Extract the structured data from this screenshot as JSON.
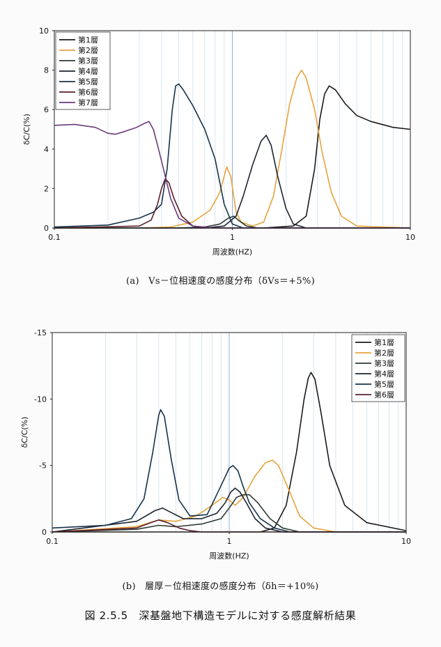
{
  "figure_title": "図 2.5.5　深基盤地下構造モデルに対する感度解析結果",
  "chart_data": [
    {
      "type": "line",
      "caption": "(a)　Vs－位相速度の感度分布（δVs＝+5%)",
      "xlabel": "周波数(HZ)",
      "ylabel": "δC/C(%)",
      "x_scale": "log",
      "xlim": [
        0.1,
        10
      ],
      "ylim": [
        0,
        10
      ],
      "y_inverted": false,
      "x_ticks": [
        "0.1",
        "1",
        "10"
      ],
      "y_ticks": [
        "0",
        "2",
        "4",
        "6",
        "8",
        "10"
      ],
      "grid": true,
      "legend_position": "top-left",
      "series": [
        {
          "name": "第1層",
          "color": "#1a1a1a",
          "points": [
            [
              0.1,
              0
            ],
            [
              1.5,
              0
            ],
            [
              2.2,
              0.1
            ],
            [
              2.6,
              0.6
            ],
            [
              2.9,
              3.0
            ],
            [
              3.1,
              5.5
            ],
            [
              3.3,
              6.8
            ],
            [
              3.5,
              7.2
            ],
            [
              3.8,
              7.0
            ],
            [
              4.3,
              6.3
            ],
            [
              5,
              5.7
            ],
            [
              6,
              5.4
            ],
            [
              8,
              5.1
            ],
            [
              10,
              5.0
            ]
          ]
        },
        {
          "name": "第2層",
          "color": "#e8a33c",
          "points": [
            [
              0.1,
              0
            ],
            [
              0.3,
              0
            ],
            [
              0.45,
              0.05
            ],
            [
              0.6,
              0.3
            ],
            [
              0.75,
              0.9
            ],
            [
              0.85,
              1.8
            ],
            [
              0.93,
              3.1
            ],
            [
              0.98,
              2.6
            ],
            [
              1.05,
              0.8
            ],
            [
              1.12,
              0.3
            ],
            [
              1.3,
              0.1
            ],
            [
              1.5,
              0.3
            ],
            [
              1.7,
              1.6
            ],
            [
              1.9,
              4.0
            ],
            [
              2.1,
              6.3
            ],
            [
              2.3,
              7.6
            ],
            [
              2.45,
              8.0
            ],
            [
              2.6,
              7.6
            ],
            [
              2.9,
              6.0
            ],
            [
              3.2,
              3.8
            ],
            [
              3.6,
              1.8
            ],
            [
              4.1,
              0.6
            ],
            [
              5,
              0.1
            ],
            [
              10,
              0
            ]
          ]
        },
        {
          "name": "第3層",
          "color": "#2b3a33",
          "points": [
            [
              0.1,
              0
            ],
            [
              0.5,
              0
            ],
            [
              0.7,
              0.05
            ],
            [
              0.85,
              0.2
            ],
            [
              0.95,
              0.5
            ],
            [
              1.02,
              0.6
            ],
            [
              1.08,
              0.4
            ],
            [
              1.2,
              0.1
            ],
            [
              1.4,
              0
            ],
            [
              10,
              0
            ]
          ]
        },
        {
          "name": "第4層",
          "color": "#1c2330",
          "points": [
            [
              0.1,
              0
            ],
            [
              0.7,
              0
            ],
            [
              0.9,
              0.1
            ],
            [
              1.05,
              0.6
            ],
            [
              1.15,
              1.6
            ],
            [
              1.3,
              3.2
            ],
            [
              1.45,
              4.4
            ],
            [
              1.55,
              4.7
            ],
            [
              1.65,
              4.2
            ],
            [
              1.8,
              2.6
            ],
            [
              2.0,
              1.0
            ],
            [
              2.2,
              0.2
            ],
            [
              2.6,
              0
            ],
            [
              10,
              0
            ]
          ]
        },
        {
          "name": "第5層",
          "color": "#16324a",
          "points": [
            [
              0.1,
              0.05
            ],
            [
              0.2,
              0.15
            ],
            [
              0.3,
              0.5
            ],
            [
              0.36,
              0.8
            ],
            [
              0.4,
              1.2
            ],
            [
              0.43,
              3.0
            ],
            [
              0.46,
              6.0
            ],
            [
              0.48,
              7.2
            ],
            [
              0.5,
              7.3
            ],
            [
              0.53,
              7.0
            ],
            [
              0.6,
              6.2
            ],
            [
              0.7,
              5.0
            ],
            [
              0.8,
              3.5
            ],
            [
              0.9,
              1.2
            ],
            [
              1.0,
              0.2
            ],
            [
              1.15,
              0
            ],
            [
              10,
              0
            ]
          ]
        },
        {
          "name": "第6層",
          "color": "#5a1f2a",
          "points": [
            [
              0.1,
              0
            ],
            [
              0.3,
              0.1
            ],
            [
              0.35,
              0.4
            ],
            [
              0.38,
              1.2
            ],
            [
              0.4,
              2.0
            ],
            [
              0.42,
              2.5
            ],
            [
              0.44,
              2.3
            ],
            [
              0.47,
              1.5
            ],
            [
              0.52,
              0.6
            ],
            [
              0.6,
              0.1
            ],
            [
              0.7,
              0
            ],
            [
              10,
              0
            ]
          ]
        },
        {
          "name": "第7層",
          "color": "#6a3a78",
          "points": [
            [
              0.1,
              5.2
            ],
            [
              0.13,
              5.25
            ],
            [
              0.17,
              5.1
            ],
            [
              0.2,
              4.8
            ],
            [
              0.22,
              4.75
            ],
            [
              0.25,
              4.9
            ],
            [
              0.29,
              5.1
            ],
            [
              0.32,
              5.3
            ],
            [
              0.34,
              5.4
            ],
            [
              0.36,
              5.0
            ],
            [
              0.38,
              4.2
            ],
            [
              0.41,
              3.0
            ],
            [
              0.45,
              1.5
            ],
            [
              0.5,
              0.5
            ],
            [
              0.6,
              0.1
            ],
            [
              0.8,
              0
            ],
            [
              10,
              0
            ]
          ]
        }
      ]
    },
    {
      "type": "line",
      "caption": "(b)　層厚－位相速度の感度分布（δh＝+10%)",
      "xlabel": "周波数(HZ)",
      "ylabel": "δC/C(%)",
      "x_scale": "log",
      "xlim": [
        0.1,
        10
      ],
      "ylim": [
        0,
        -15
      ],
      "y_inverted": true,
      "x_ticks": [
        "0.1",
        "1",
        "10"
      ],
      "y_ticks": [
        "0",
        "-5",
        "-10",
        "-15"
      ],
      "grid": true,
      "legend_position": "top-right",
      "series": [
        {
          "name": "第1層",
          "color": "#1a1a1a",
          "points": [
            [
              0.1,
              0
            ],
            [
              1.5,
              0
            ],
            [
              1.8,
              -0.3
            ],
            [
              2.1,
              -2.0
            ],
            [
              2.4,
              -6.0
            ],
            [
              2.65,
              -10.0
            ],
            [
              2.8,
              -11.6
            ],
            [
              2.9,
              -12.0
            ],
            [
              3.05,
              -11.5
            ],
            [
              3.3,
              -9.0
            ],
            [
              3.7,
              -5.0
            ],
            [
              4.5,
              -2.0
            ],
            [
              6,
              -0.7
            ],
            [
              10,
              -0.1
            ]
          ]
        },
        {
          "name": "第2層",
          "color": "#e8a33c",
          "points": [
            [
              0.1,
              0
            ],
            [
              0.3,
              -0.4
            ],
            [
              0.4,
              -0.9
            ],
            [
              0.5,
              -0.8
            ],
            [
              0.65,
              -1.2
            ],
            [
              0.8,
              -2.0
            ],
            [
              0.92,
              -2.6
            ],
            [
              1.0,
              -2.4
            ],
            [
              1.08,
              -2.0
            ],
            [
              1.2,
              -2.6
            ],
            [
              1.4,
              -4.2
            ],
            [
              1.6,
              -5.2
            ],
            [
              1.75,
              -5.4
            ],
            [
              1.9,
              -5.0
            ],
            [
              2.2,
              -3.0
            ],
            [
              2.5,
              -1.2
            ],
            [
              3.0,
              -0.3
            ],
            [
              4,
              0
            ],
            [
              10,
              0
            ]
          ]
        },
        {
          "name": "第3層",
          "color": "#2b3a33",
          "points": [
            [
              0.1,
              0
            ],
            [
              0.3,
              -0.2
            ],
            [
              0.4,
              -0.5
            ],
            [
              0.5,
              -0.4
            ],
            [
              0.7,
              -0.6
            ],
            [
              0.9,
              -1.0
            ],
            [
              1.0,
              -1.8
            ],
            [
              1.1,
              -2.6
            ],
            [
              1.2,
              -2.8
            ],
            [
              1.3,
              -2.8
            ],
            [
              1.45,
              -2.2
            ],
            [
              1.7,
              -1.0
            ],
            [
              2.0,
              -0.3
            ],
            [
              2.5,
              0
            ],
            [
              10,
              0
            ]
          ]
        },
        {
          "name": "第4層",
          "color": "#1c2330",
          "points": [
            [
              0.1,
              0
            ],
            [
              0.3,
              -0.8
            ],
            [
              0.38,
              -1.6
            ],
            [
              0.42,
              -1.8
            ],
            [
              0.48,
              -1.4
            ],
            [
              0.55,
              -1.0
            ],
            [
              0.7,
              -1.0
            ],
            [
              0.85,
              -1.4
            ],
            [
              0.95,
              -2.2
            ],
            [
              1.02,
              -3.0
            ],
            [
              1.08,
              -3.3
            ],
            [
              1.15,
              -3.0
            ],
            [
              1.25,
              -2.2
            ],
            [
              1.4,
              -1.0
            ],
            [
              1.6,
              -0.3
            ],
            [
              2.0,
              0
            ],
            [
              10,
              0
            ]
          ]
        },
        {
          "name": "第5層",
          "color": "#16324a",
          "points": [
            [
              0.1,
              -0.3
            ],
            [
              0.2,
              -0.5
            ],
            [
              0.28,
              -1.0
            ],
            [
              0.33,
              -2.5
            ],
            [
              0.37,
              -6.0
            ],
            [
              0.4,
              -8.8
            ],
            [
              0.41,
              -9.2
            ],
            [
              0.43,
              -8.7
            ],
            [
              0.47,
              -5.5
            ],
            [
              0.52,
              -2.4
            ],
            [
              0.6,
              -1.2
            ],
            [
              0.75,
              -1.3
            ],
            [
              0.9,
              -3.5
            ],
            [
              1.0,
              -4.8
            ],
            [
              1.05,
              -5.0
            ],
            [
              1.12,
              -4.6
            ],
            [
              1.2,
              -3.4
            ],
            [
              1.3,
              -2.2
            ],
            [
              1.5,
              -1.0
            ],
            [
              1.8,
              -0.3
            ],
            [
              2.2,
              0
            ],
            [
              10,
              0
            ]
          ]
        },
        {
          "name": "第6層",
          "color": "#5a1f2a",
          "points": [
            [
              0.1,
              0
            ],
            [
              0.3,
              -0.3
            ],
            [
              0.36,
              -0.7
            ],
            [
              0.4,
              -0.9
            ],
            [
              0.45,
              -0.7
            ],
            [
              0.52,
              -0.3
            ],
            [
              0.6,
              -0.1
            ],
            [
              0.7,
              0
            ],
            [
              10,
              0
            ]
          ]
        }
      ]
    }
  ]
}
